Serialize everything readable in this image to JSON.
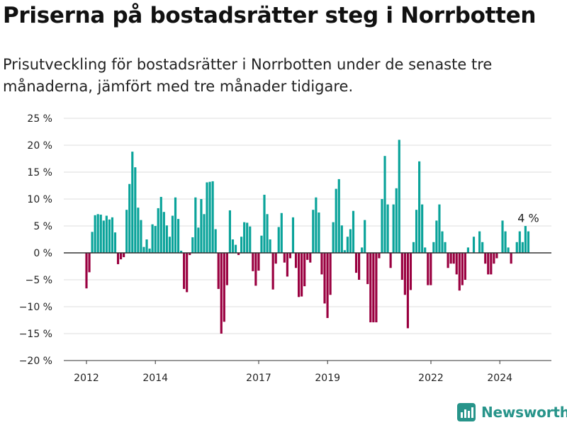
{
  "title": "Priserna på bostadsrätter steg i Norrbotten",
  "subtitle": "Prisutveckling för bostadsrätter i Norrbotten under de senaste tre månaderna, jämfört med tre månader tidigare.",
  "brand": "Newsworthy",
  "colors": {
    "positive": "#0aa39a",
    "negative": "#9a0040",
    "grid": "#dddddd",
    "baseline": "#333333",
    "brand": "#27948a"
  },
  "chart_data": {
    "type": "bar",
    "ylim": [
      -20,
      25
    ],
    "yticks": [
      -20,
      -15,
      -10,
      -5,
      0,
      5,
      10,
      15,
      20,
      25
    ],
    "ytick_labels": [
      "−20 %",
      "−15 %",
      "−10 %",
      "−5 %",
      "0 %",
      "5 %",
      "10 %",
      "15 %",
      "20 %",
      "25 %"
    ],
    "xtick_labels": [
      "2012",
      "2014",
      "2017",
      "2019",
      "2022",
      "2024"
    ],
    "xtick_positions": [
      2012.0,
      2014.0,
      2017.0,
      2019.0,
      2022.0,
      2024.0
    ],
    "x_start": 2012.0,
    "bar_step": 0.0833,
    "grid": true,
    "annotation": "4 %",
    "values": [
      -6.6,
      -3.6,
      3.9,
      7.0,
      7.2,
      7.1,
      6.0,
      6.9,
      6.2,
      6.6,
      3.8,
      -2.1,
      -1.2,
      -0.8,
      8.0,
      12.8,
      18.8,
      15.9,
      8.4,
      6.1,
      1.1,
      2.5,
      0.8,
      5.3,
      5.0,
      8.3,
      10.4,
      7.6,
      5.1,
      3.0,
      6.9,
      10.3,
      6.3,
      0.4,
      -6.7,
      -7.3,
      -0.4,
      2.9,
      10.3,
      4.7,
      10.0,
      7.2,
      13.1,
      13.2,
      13.3,
      4.4,
      -6.7,
      -15.0,
      -12.8,
      -6.0,
      7.9,
      2.5,
      1.5,
      -0.4,
      3.0,
      5.7,
      5.6,
      4.9,
      -3.4,
      -6.1,
      -3.3,
      3.2,
      10.8,
      7.2,
      2.5,
      -6.8,
      -2.0,
      4.8,
      7.4,
      -1.8,
      -4.4,
      -1.0,
      6.6,
      -2.8,
      -8.2,
      -8.1,
      -6.2,
      -1.3,
      -1.8,
      8.0,
      10.3,
      7.5,
      -4.0,
      -9.4,
      -12.1,
      -7.8,
      5.7,
      11.9,
      13.7,
      5.1,
      0.5,
      3.0,
      4.4,
      7.8,
      -3.7,
      -5.0,
      1.0,
      6.1,
      -5.8,
      -12.9,
      -12.9,
      -12.9,
      -1.0,
      10.0,
      18.0,
      9.0,
      -2.8,
      9.0,
      12.0,
      21.0,
      -5.0,
      -7.8,
      -14.0,
      -6.9,
      2.0,
      8.0,
      17.0,
      9.0,
      1.0,
      -6.0,
      -6.0,
      2.0,
      6.0,
      9.0,
      4.0,
      2.0,
      -2.8,
      -2.0,
      -2.0,
      -4.0,
      -7.0,
      -6.0,
      -5.0,
      1.0,
      0.0,
      3.0,
      0.0,
      4.0,
      2.0,
      -2.0,
      -4.0,
      -4.0,
      -2.0,
      -1.0,
      0.0,
      6.0,
      4.0,
      1.0,
      -2.0,
      0.0,
      2.0,
      4.0,
      2.0,
      5.0,
      4.0
    ]
  }
}
